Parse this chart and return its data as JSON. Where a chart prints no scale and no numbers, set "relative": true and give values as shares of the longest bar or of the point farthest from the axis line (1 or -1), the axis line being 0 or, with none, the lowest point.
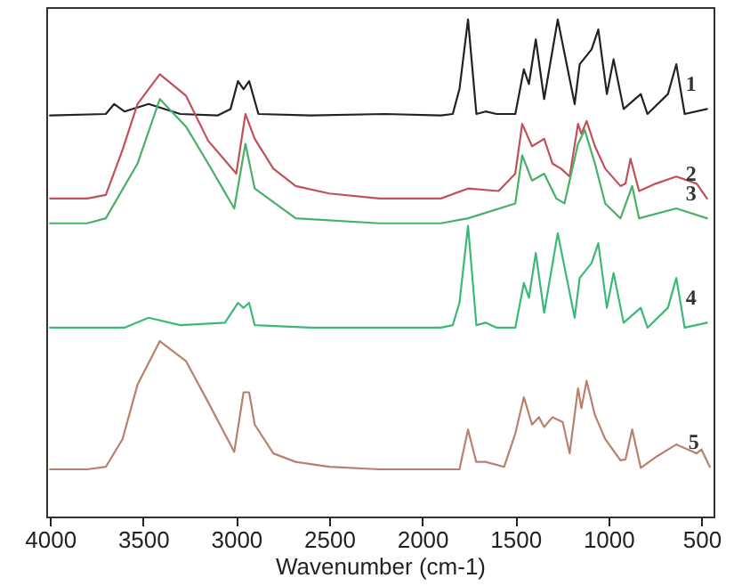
{
  "chart_data": {
    "type": "line",
    "xlabel": "Wavenumber (cm-1)",
    "relative": true,
    "xlim": [
      4020,
      435
    ],
    "xticks": [
      4000,
      3500,
      3000,
      2500,
      2000,
      1500,
      1000,
      500
    ],
    "marker": "none",
    "line_style": "solid",
    "series": [
      {
        "name": "1",
        "color": "#222222",
        "x": [
          4000,
          3700,
          3655,
          3600,
          3470,
          3300,
          3100,
          3030,
          2990,
          2960,
          2930,
          2880,
          2600,
          2200,
          1900,
          1836,
          1800,
          1754,
          1709,
          1660,
          1600,
          1500,
          1454,
          1427,
          1390,
          1345,
          1272,
          1181,
          1154,
          1090,
          1054,
          1008,
          972,
          918,
          826,
          790,
          680,
          635,
          590,
          470
        ],
        "values": [
          0.807,
          0.81,
          0.83,
          0.815,
          0.83,
          0.81,
          0.807,
          0.82,
          0.876,
          0.86,
          0.876,
          0.81,
          0.807,
          0.81,
          0.807,
          0.81,
          0.86,
          1.0,
          0.81,
          0.815,
          0.81,
          0.81,
          0.9,
          0.87,
          0.96,
          0.84,
          1.0,
          0.83,
          0.91,
          0.94,
          0.98,
          0.85,
          0.92,
          0.82,
          0.85,
          0.81,
          0.85,
          0.91,
          0.81,
          0.82
        ]
      },
      {
        "name": "2",
        "color": "#c0505a",
        "x": [
          4000,
          3800,
          3700,
          3610,
          3530,
          3410,
          3270,
          3150,
          2999,
          2950,
          2900,
          2800,
          2680,
          2500,
          2230,
          1900,
          1754,
          1590,
          1500,
          1463,
          1410,
          1345,
          1300,
          1254,
          1208,
          1163,
          1145,
          1117,
          1072,
          1017,
          935,
          908,
          881,
          835,
          744,
          635,
          526,
          470
        ],
        "values": [
          0.64,
          0.64,
          0.647,
          0.738,
          0.83,
          0.89,
          0.847,
          0.756,
          0.69,
          0.81,
          0.76,
          0.7,
          0.665,
          0.65,
          0.64,
          0.64,
          0.66,
          0.655,
          0.69,
          0.79,
          0.745,
          0.76,
          0.71,
          0.7,
          0.684,
          0.79,
          0.77,
          0.796,
          0.745,
          0.7,
          0.665,
          0.67,
          0.72,
          0.655,
          0.67,
          0.684,
          0.67,
          0.64
        ]
      },
      {
        "name": "3",
        "color": "#48b068",
        "x": [
          4000,
          3800,
          3700,
          3530,
          3410,
          3270,
          3150,
          3010,
          2950,
          2900,
          2680,
          2230,
          1900,
          1754,
          1500,
          1463,
          1410,
          1345,
          1280,
          1236,
          1163,
          1127,
          1072,
          1017,
          935,
          872,
          835,
          635,
          470
        ],
        "values": [
          0.59,
          0.59,
          0.6,
          0.71,
          0.84,
          0.785,
          0.71,
          0.62,
          0.75,
          0.66,
          0.6,
          0.59,
          0.59,
          0.6,
          0.63,
          0.727,
          0.676,
          0.69,
          0.64,
          0.63,
          0.75,
          0.778,
          0.71,
          0.63,
          0.6,
          0.665,
          0.6,
          0.62,
          0.6
        ]
      },
      {
        "name": "4",
        "color": "#3cb878",
        "x": [
          4000,
          3600,
          3470,
          3300,
          3060,
          2990,
          2960,
          2930,
          2900,
          2600,
          2200,
          1900,
          1836,
          1800,
          1754,
          1709,
          1660,
          1600,
          1500,
          1454,
          1427,
          1390,
          1345,
          1272,
          1181,
          1154,
          1090,
          1054,
          1008,
          972,
          918,
          826,
          790,
          680,
          635,
          590,
          470
        ],
        "values": [
          0.38,
          0.38,
          0.4,
          0.385,
          0.39,
          0.43,
          0.42,
          0.43,
          0.385,
          0.38,
          0.38,
          0.38,
          0.385,
          0.43,
          0.585,
          0.385,
          0.39,
          0.38,
          0.38,
          0.47,
          0.44,
          0.53,
          0.41,
          0.57,
          0.4,
          0.48,
          0.51,
          0.55,
          0.42,
          0.49,
          0.39,
          0.42,
          0.38,
          0.42,
          0.48,
          0.38,
          0.39
        ]
      },
      {
        "name": "5",
        "color": "#b98070",
        "x": [
          4000,
          3800,
          3700,
          3610,
          3530,
          3410,
          3270,
          3150,
          3010,
          2960,
          2930,
          2900,
          2800,
          2680,
          2500,
          2230,
          1900,
          1800,
          1754,
          1710,
          1660,
          1560,
          1500,
          1454,
          1410,
          1373,
          1345,
          1300,
          1245,
          1208,
          1163,
          1145,
          1117,
          1072,
          1017,
          935,
          908,
          872,
          826,
          744,
          635,
          526,
          500,
          455
        ],
        "values": [
          0.095,
          0.095,
          0.1,
          0.156,
          0.265,
          0.353,
          0.313,
          0.23,
          0.13,
          0.25,
          0.25,
          0.185,
          0.127,
          0.11,
          0.1,
          0.095,
          0.095,
          0.095,
          0.175,
          0.11,
          0.11,
          0.1,
          0.167,
          0.24,
          0.185,
          0.2,
          0.18,
          0.2,
          0.19,
          0.127,
          0.258,
          0.218,
          0.273,
          0.204,
          0.156,
          0.113,
          0.115,
          0.175,
          0.098,
          0.12,
          0.145,
          0.127,
          0.135,
          0.1
        ]
      }
    ]
  }
}
